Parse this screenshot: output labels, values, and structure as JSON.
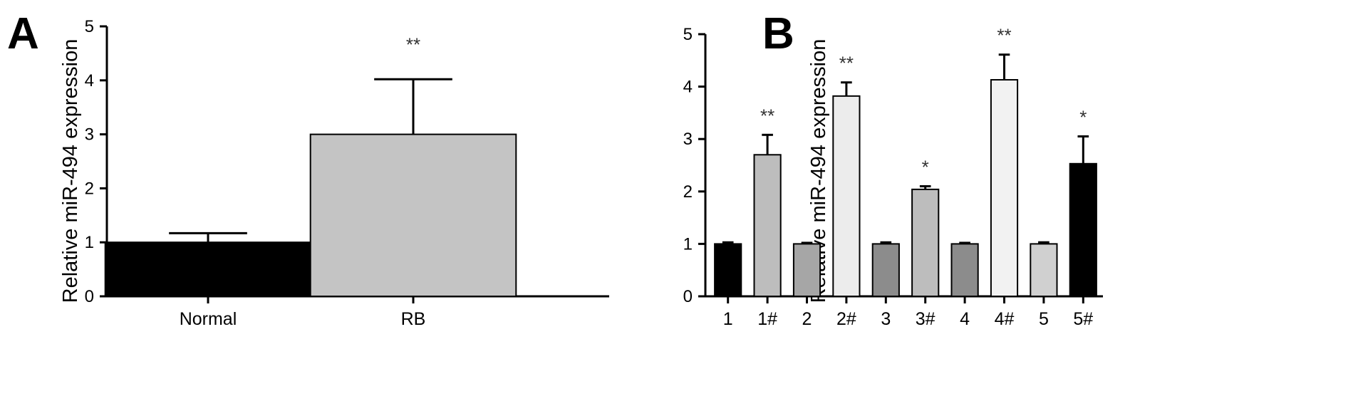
{
  "chart_data": [
    {
      "panel_label": "A",
      "type": "bar",
      "ylabel": "Relative miR-494  expression",
      "xlabel": "",
      "ylim": [
        0,
        5
      ],
      "yticks": [
        0,
        1,
        2,
        3,
        4,
        5
      ],
      "categories": [
        "Normal",
        "RB"
      ],
      "values": [
        1.0,
        3.0
      ],
      "errors": [
        0.17,
        1.02
      ],
      "significance": [
        "",
        "**"
      ],
      "colors": [
        "#000000",
        "#c4c4c4"
      ],
      "grid": false,
      "legend": "none"
    },
    {
      "panel_label": "B",
      "type": "bar",
      "ylabel": "Relative miR-494  expression",
      "xlabel": "",
      "ylim": [
        0,
        5
      ],
      "yticks": [
        0,
        1,
        2,
        3,
        4,
        5
      ],
      "categories": [
        "1",
        "1#",
        "2",
        "2#",
        "3",
        "3#",
        "4",
        "4#",
        "5",
        "5#"
      ],
      "values": [
        1.0,
        2.7,
        1.0,
        3.82,
        1.0,
        2.04,
        1.0,
        4.13,
        1.0,
        2.53
      ],
      "errors": [
        0.03,
        0.38,
        0.02,
        0.26,
        0.03,
        0.06,
        0.02,
        0.48,
        0.03,
        0.52
      ],
      "significance": [
        "",
        "**",
        "",
        "**",
        "",
        "*",
        "",
        "**",
        "",
        "*"
      ],
      "colors": [
        "#000000",
        "#bdbdbd",
        "#a6a6a6",
        "#ececec",
        "#8c8c8c",
        "#bdbdbd",
        "#8c8c8c",
        "#f2f2f2",
        "#d0d0d0",
        "#000000"
      ],
      "grid": false,
      "legend": "none"
    }
  ]
}
